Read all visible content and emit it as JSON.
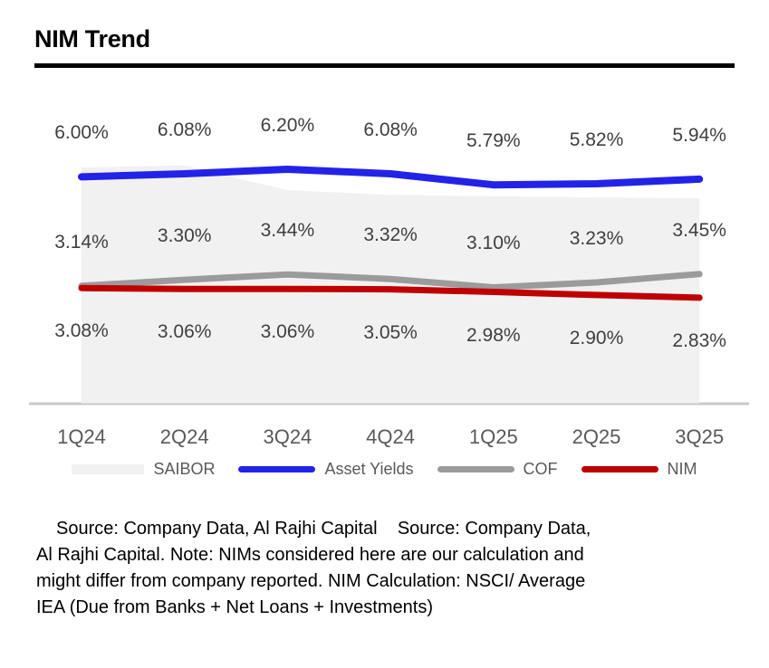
{
  "chart_data": {
    "type": "line",
    "title": "NIM Trend",
    "categories": [
      "1Q24",
      "2Q24",
      "3Q24",
      "4Q24",
      "1Q25",
      "2Q25",
      "3Q25"
    ],
    "series": [
      {
        "name": "SAIBOR",
        "kind": "area",
        "color": "#F1F1F1",
        "data_labels": false,
        "values": [
          6.25,
          6.3,
          5.65,
          5.53,
          5.49,
          5.46,
          5.44
        ]
      },
      {
        "name": "Asset Yields",
        "kind": "line",
        "color": "#2323E8",
        "data_labels": true,
        "label_side": "above",
        "values": [
          6.0,
          6.08,
          6.2,
          6.08,
          5.79,
          5.82,
          5.94
        ]
      },
      {
        "name": "COF",
        "kind": "line",
        "color": "#9B9B9B",
        "data_labels": true,
        "label_side": "above",
        "values": [
          3.14,
          3.3,
          3.44,
          3.32,
          3.1,
          3.23,
          3.45
        ]
      },
      {
        "name": "NIM",
        "kind": "line",
        "color": "#C00000",
        "data_labels": true,
        "label_side": "below",
        "values": [
          3.08,
          3.06,
          3.06,
          3.05,
          2.98,
          2.9,
          2.83
        ]
      }
    ],
    "ylim": [
      0,
      6.8
    ],
    "value_label_format": "0.00%",
    "grid": false,
    "legend_position": "bottom",
    "colors": {
      "value_label": "#3F3F3F",
      "axis_label": "#595959",
      "legend_label": "#595959",
      "axis_line": "#C9C9C9",
      "title": "#000000"
    }
  },
  "source": {
    "lines": [
      "Source: Company Data, Al Rajhi Capital    Source: Company Data,",
      "Al Rajhi Capital. Note: NIMs considered here are our calculation and",
      "might differ from company reported. NIM Calculation: NSCI/ Average",
      "IEA (Due from Banks + Net Loans + Investments)"
    ]
  }
}
